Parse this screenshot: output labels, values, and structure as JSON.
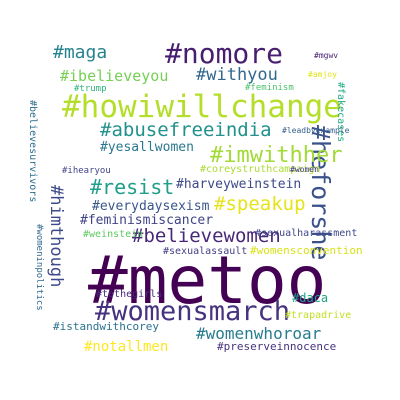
{
  "words": [
    {
      "text": "#metoo",
      "color": "#440154",
      "orientation": "horizontal"
    },
    {
      "text": "#womensmarch",
      "color": "#46327e",
      "orientation": "horizontal"
    },
    {
      "text": "#howiwillchange",
      "color": "#b5de2b",
      "orientation": "horizontal"
    },
    {
      "text": "#nomore",
      "color": "#481f70",
      "orientation": "horizontal"
    },
    {
      "text": "#heforshe",
      "color": "#3b518b",
      "orientation": "vertical"
    },
    {
      "text": "#imwithher",
      "color": "#a2da37",
      "orientation": "horizontal"
    },
    {
      "text": "#abusefreeindia",
      "color": "#21918c",
      "orientation": "horizontal"
    },
    {
      "text": "#believewomen",
      "color": "#482878",
      "orientation": "horizontal"
    },
    {
      "text": "#resist",
      "color": "#1f9e89",
      "orientation": "horizontal"
    },
    {
      "text": "#speakup",
      "color": "#e5e419",
      "orientation": "horizontal"
    },
    {
      "text": "#himthough",
      "color": "#3e4a89",
      "orientation": "vertical"
    },
    {
      "text": "#womenwhoroar",
      "color": "#287c8e",
      "orientation": "horizontal"
    },
    {
      "text": "#maga",
      "color": "#26828e",
      "orientation": "horizontal"
    },
    {
      "text": "#withyou",
      "color": "#31688e",
      "orientation": "horizontal"
    },
    {
      "text": "#ibelieveyou",
      "color": "#75d054",
      "orientation": "horizontal"
    },
    {
      "text": "#harveyweinstein",
      "color": "#3e4989",
      "orientation": "horizontal"
    },
    {
      "text": "#everydaysexism",
      "color": "#39568c",
      "orientation": "horizontal"
    },
    {
      "text": "#feminismiscancer",
      "color": "#414487",
      "orientation": "horizontal"
    },
    {
      "text": "#notallmen",
      "color": "#fde725",
      "orientation": "horizontal"
    },
    {
      "text": "#yesallwomen",
      "color": "#2a788e",
      "orientation": "horizontal"
    },
    {
      "text": "#daca",
      "color": "#1fa187",
      "orientation": "horizontal"
    },
    {
      "text": "#womensconvention",
      "color": "#d8e219",
      "orientation": "horizontal"
    },
    {
      "text": "#istandwithcorey",
      "color": "#2c728e",
      "orientation": "horizontal"
    },
    {
      "text": "#preserveinnocence",
      "color": "#46337e",
      "orientation": "horizontal"
    },
    {
      "text": "#tothegirls",
      "color": "#472d7b",
      "orientation": "horizontal"
    },
    {
      "text": "#sexualassault",
      "color": "#433e85",
      "orientation": "horizontal"
    },
    {
      "text": "#sexualharassment",
      "color": "#3f4788",
      "orientation": "horizontal"
    },
    {
      "text": "#believesurvivors",
      "color": "#2e6e8e",
      "orientation": "vertical"
    },
    {
      "text": "#fakecases",
      "color": "#22a884",
      "orientation": "vertical"
    },
    {
      "text": "#womeninpolitics",
      "color": "#30698e",
      "orientation": "vertical"
    },
    {
      "text": "#coreystruthcampaign",
      "color": "#aadc32",
      "orientation": "horizontal"
    },
    {
      "text": "#weinstein",
      "color": "#5ec962",
      "orientation": "horizontal"
    },
    {
      "text": "#trapadrive",
      "color": "#c2df23",
      "orientation": "horizontal"
    },
    {
      "text": "#feminism",
      "color": "#4ac16d",
      "orientation": "horizontal"
    },
    {
      "text": "#trump",
      "color": "#2db27d",
      "orientation": "horizontal"
    },
    {
      "text": "#mgwv",
      "color": "#482374",
      "orientation": "horizontal"
    },
    {
      "text": "#amjoy",
      "color": "#e2e418",
      "orientation": "horizontal"
    },
    {
      "text": "#leadbyexample",
      "color": "#35608d",
      "orientation": "horizontal"
    },
    {
      "text": "#ihearyou",
      "color": "#404688",
      "orientation": "horizontal"
    },
    {
      "text": "#women",
      "color": "#453882",
      "orientation": "horizontal"
    }
  ]
}
